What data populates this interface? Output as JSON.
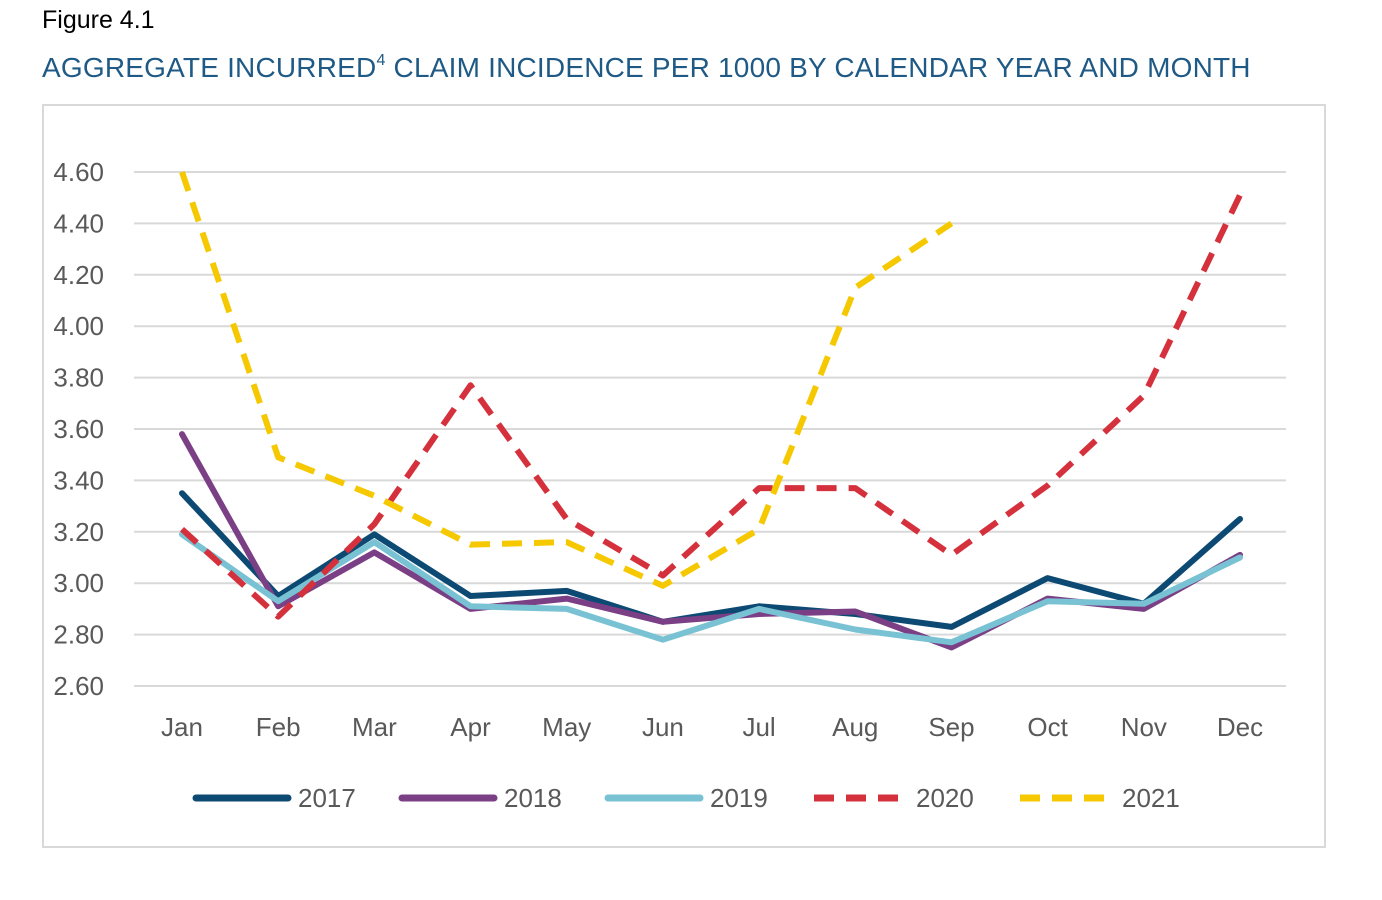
{
  "figure_label": "Figure 4.1",
  "title_main": "AGGREGATE INCURRED",
  "title_sup": "4",
  "title_rest": " CLAIM INCIDENCE PER 1000 BY CALENDAR YEAR AND MONTH",
  "chart_data": {
    "type": "line",
    "title": "AGGREGATE INCURRED4 CLAIM INCIDENCE PER 1000 BY CALENDAR YEAR AND MONTH",
    "xlabel": "",
    "ylabel": "",
    "categories": [
      "Jan",
      "Feb",
      "Mar",
      "Apr",
      "May",
      "Jun",
      "Jul",
      "Aug",
      "Sep",
      "Oct",
      "Nov",
      "Dec"
    ],
    "ylim": [
      2.6,
      4.6
    ],
    "yticks": [
      "4.60",
      "4.40",
      "4.20",
      "4.00",
      "3.80",
      "3.60",
      "3.40",
      "3.20",
      "3.00",
      "2.80",
      "2.60"
    ],
    "grid": true,
    "legend_position": "bottom",
    "series": [
      {
        "name": "2017",
        "color": "#0d4a73",
        "style": "solid",
        "values": [
          3.35,
          2.95,
          3.19,
          2.95,
          2.97,
          2.85,
          2.91,
          2.88,
          2.83,
          3.02,
          2.92,
          3.25
        ]
      },
      {
        "name": "2018",
        "color": "#7b3f86",
        "style": "solid",
        "values": [
          3.58,
          2.91,
          3.12,
          2.9,
          2.94,
          2.85,
          2.88,
          2.89,
          2.75,
          2.94,
          2.9,
          3.11
        ]
      },
      {
        "name": "2019",
        "color": "#78c2d4",
        "style": "solid",
        "values": [
          3.19,
          2.93,
          3.16,
          2.91,
          2.9,
          2.78,
          2.9,
          2.82,
          2.77,
          2.93,
          2.92,
          3.1
        ]
      },
      {
        "name": "2020",
        "color": "#d5313d",
        "style": "dashed",
        "values": [
          3.21,
          2.87,
          3.23,
          3.77,
          3.25,
          3.03,
          3.37,
          3.37,
          3.11,
          3.38,
          3.73,
          4.51
        ]
      },
      {
        "name": "2021",
        "color": "#f5c800",
        "style": "dashed",
        "values": [
          4.6,
          3.49,
          3.34,
          3.15,
          3.16,
          2.99,
          3.21,
          4.15,
          4.4,
          null,
          null,
          null
        ]
      }
    ]
  }
}
